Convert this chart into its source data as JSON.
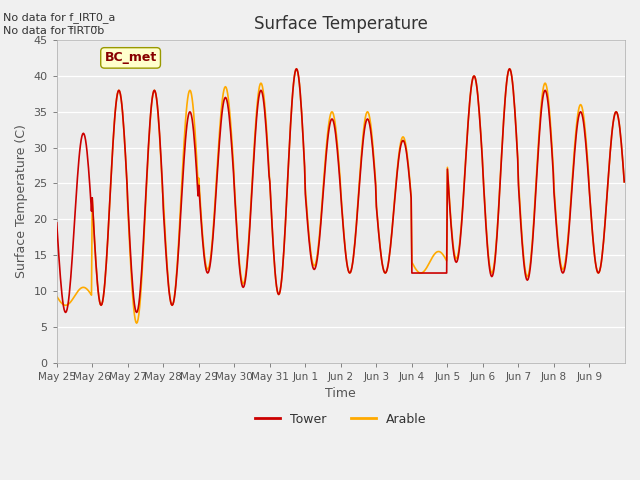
{
  "title": "Surface Temperature",
  "ylabel": "Surface Temperature (C)",
  "xlabel": "Time",
  "ylim": [
    0,
    45
  ],
  "yticks": [
    0,
    5,
    10,
    15,
    20,
    25,
    30,
    35,
    40,
    45
  ],
  "xtick_labels": [
    "May 25",
    "May 26",
    "May 27",
    "May 28",
    "May 29",
    "May 30",
    "May 31",
    "Jun 1",
    "Jun 2",
    "Jun 3",
    "Jun 4",
    "Jun 5",
    "Jun 6",
    "Jun 7",
    "Jun 8",
    "Jun 9"
  ],
  "no_data_text_1": "No data for f_IRT0_a",
  "no_data_text_2": "No data for f̅IRT0̅b",
  "legend_label_box": "BC_met",
  "legend_entries": [
    "Tower",
    "Arable"
  ],
  "tower_color": "#cc0000",
  "arable_color": "#ffaa00",
  "plot_bg": "#ebebeb",
  "grid_color": "#ffffff",
  "annotation_box_color": "#ffffcc",
  "annotation_box_edge": "#999900",
  "day_maxima_tower": [
    32,
    38,
    38,
    35,
    37,
    38,
    41,
    34,
    34,
    31,
    12.5,
    40,
    41,
    38,
    35,
    35
  ],
  "day_maxima_arable": [
    10.5,
    38,
    38,
    38,
    38.5,
    39,
    41,
    35,
    35,
    31.5,
    15.5,
    40,
    41,
    39,
    36,
    35
  ],
  "day_minima_tower": [
    7,
    8,
    7,
    8,
    12.5,
    10.5,
    9.5,
    13,
    12.5,
    12.5,
    12.5,
    14,
    12,
    11.5,
    12.5,
    12.5
  ],
  "day_minima_arable": [
    8,
    8,
    5.5,
    8,
    13,
    11,
    9.5,
    13.5,
    12.5,
    12.5,
    12.5,
    14.5,
    12.5,
    12,
    13,
    12.5
  ]
}
